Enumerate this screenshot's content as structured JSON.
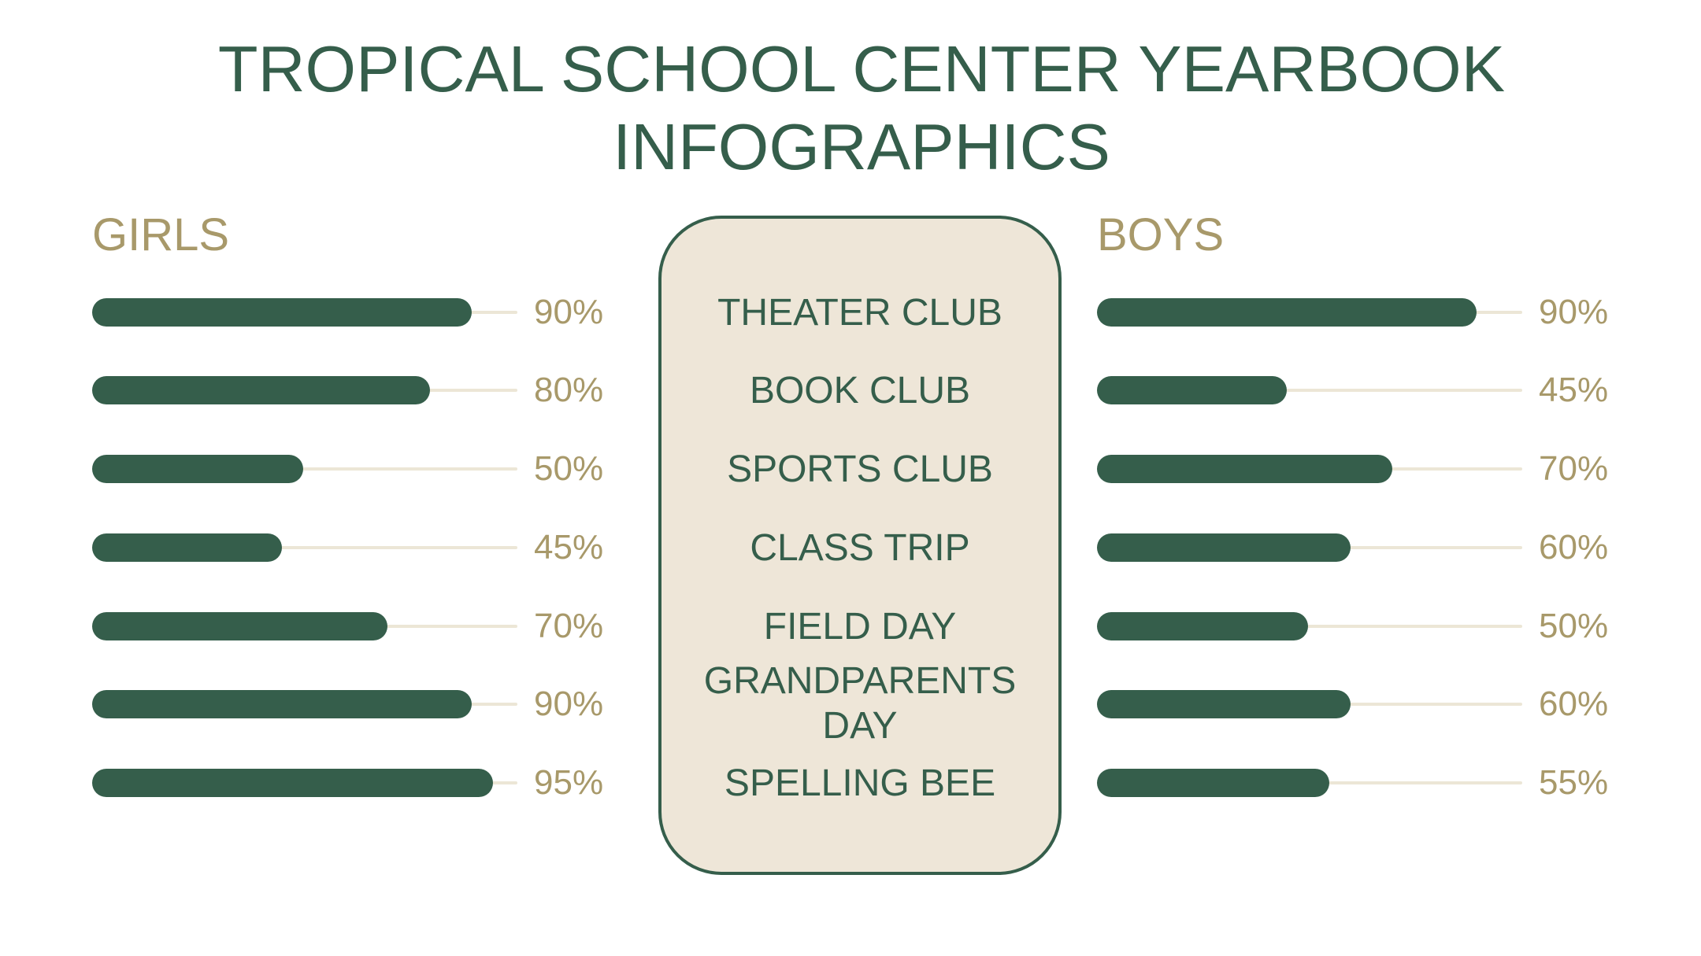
{
  "title_lines": [
    "TROPICAL SCHOOL CENTER YEARBOOK",
    "INFOGRAPHICS"
  ],
  "colors": {
    "primary": "#355e4b",
    "accent": "#a8996a",
    "panel": "#eee6d8",
    "track": "#ece6d6"
  },
  "chart_data": {
    "type": "bar",
    "orientation": "horizontal",
    "title": "TROPICAL SCHOOL CENTER YEARBOOK INFOGRAPHICS",
    "categories": [
      "THEATER CLUB",
      "BOOK CLUB",
      "SPORTS CLUB",
      "CLASS TRIP",
      "FIELD DAY",
      "GRANDPARENTS DAY",
      "SPELLING BEE"
    ],
    "series": [
      {
        "name": "GIRLS",
        "values": [
          90,
          80,
          50,
          45,
          70,
          90,
          95
        ],
        "labels": [
          "90%",
          "80%",
          "50%",
          "45%",
          "70%",
          "90%",
          "95%"
        ]
      },
      {
        "name": "BOYS",
        "values": [
          90,
          45,
          70,
          60,
          50,
          60,
          55
        ],
        "labels": [
          "90%",
          "45%",
          "70%",
          "60%",
          "50%",
          "60%",
          "55%"
        ]
      }
    ],
    "xlim": [
      0,
      100
    ],
    "unit": "%"
  }
}
